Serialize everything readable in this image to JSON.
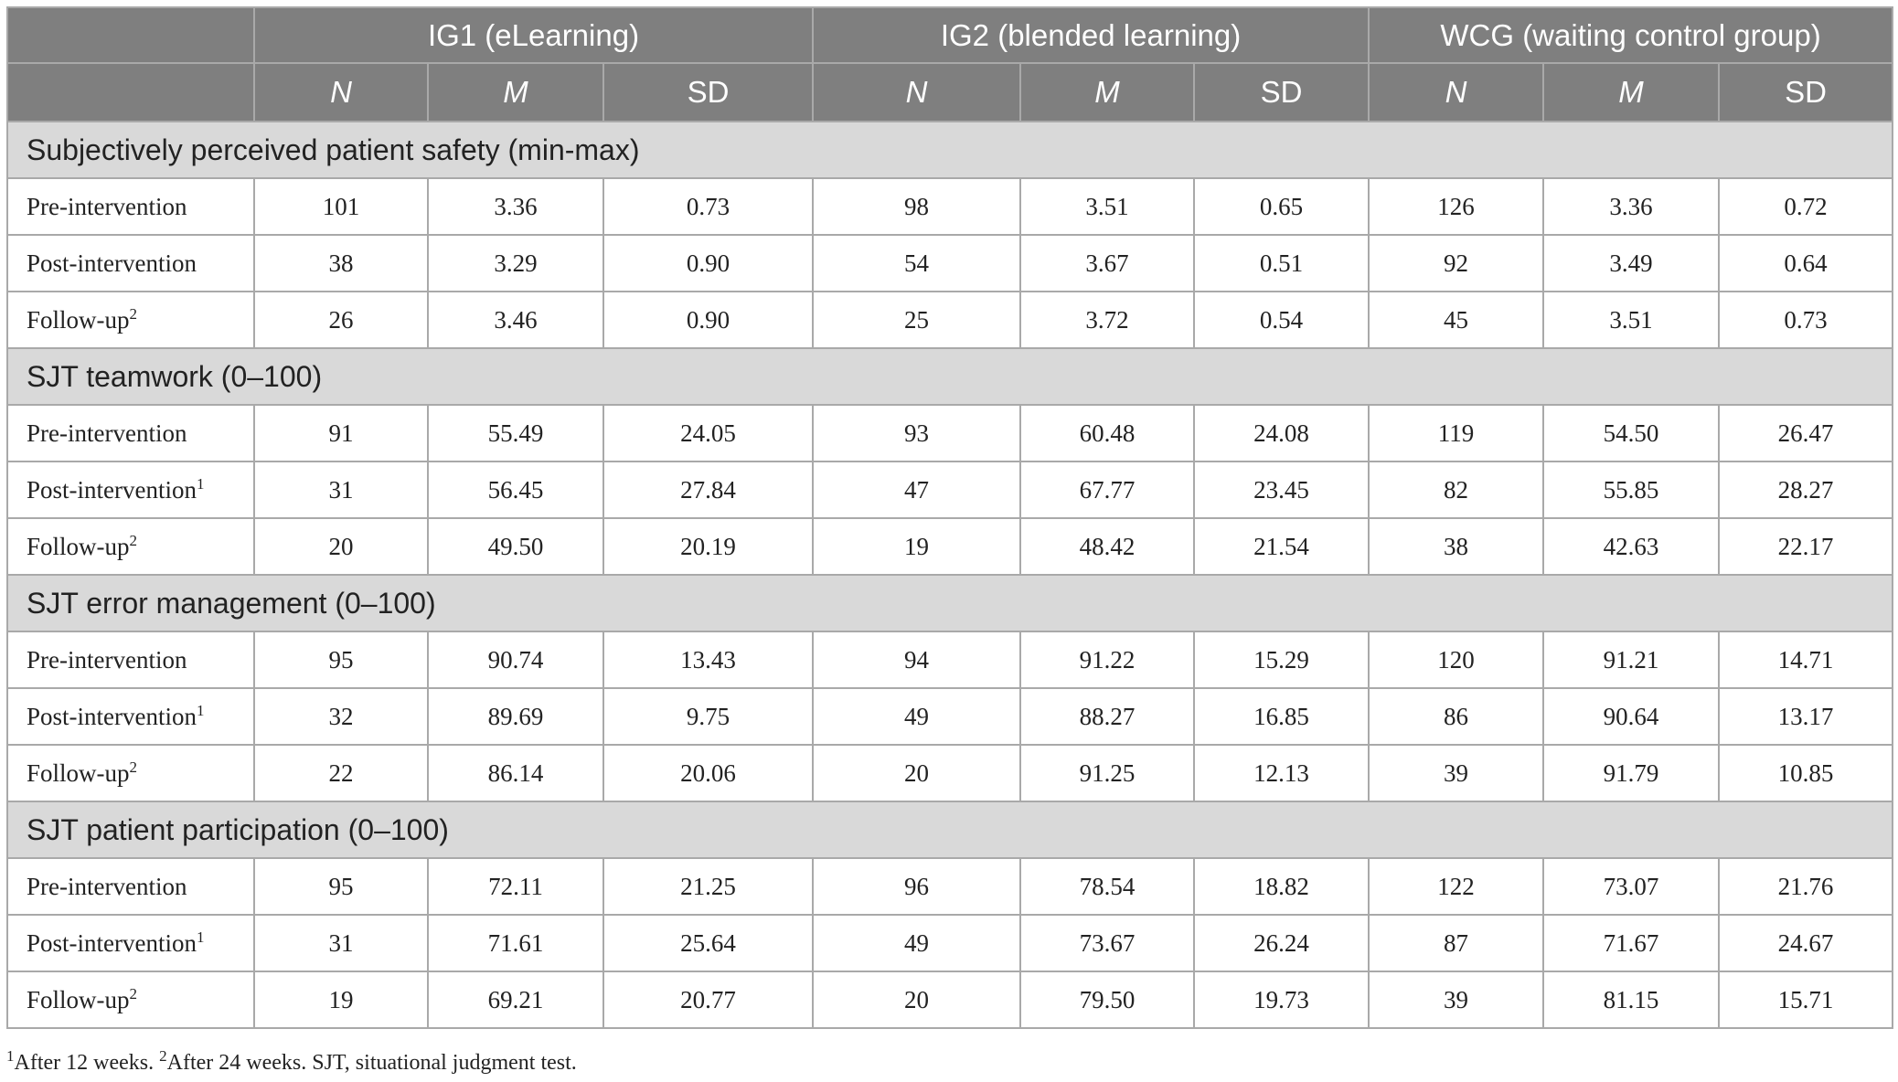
{
  "table": {
    "groups": [
      "IG1 (eLearning)",
      "IG2 (blended learning)",
      "WCG (waiting control group)"
    ],
    "subheaders": [
      "N",
      "M",
      "SD"
    ],
    "sections": [
      {
        "title": "Subjectively perceived patient safety (min-max)",
        "rows": [
          {
            "label": "Pre-intervention",
            "values": [
              "101",
              "3.36",
              "0.73",
              "98",
              "3.51",
              "0.65",
              "126",
              "3.36",
              "0.72"
            ]
          },
          {
            "label": "Post-intervention",
            "values": [
              "38",
              "3.29",
              "0.90",
              "54",
              "3.67",
              "0.51",
              "92",
              "3.49",
              "0.64"
            ]
          },
          {
            "label": "Follow-up",
            "note": "2",
            "values": [
              "26",
              "3.46",
              "0.90",
              "25",
              "3.72",
              "0.54",
              "45",
              "3.51",
              "0.73"
            ]
          }
        ]
      },
      {
        "title": "SJT teamwork (0–100)",
        "rows": [
          {
            "label": "Pre-intervention",
            "values": [
              "91",
              "55.49",
              "24.05",
              "93",
              "60.48",
              "24.08",
              "119",
              "54.50",
              "26.47"
            ]
          },
          {
            "label": "Post-intervention",
            "note": "1",
            "values": [
              "31",
              "56.45",
              "27.84",
              "47",
              "67.77",
              "23.45",
              "82",
              "55.85",
              "28.27"
            ]
          },
          {
            "label": "Follow-up",
            "note": "2",
            "values": [
              "20",
              "49.50",
              "20.19",
              "19",
              "48.42",
              "21.54",
              "38",
              "42.63",
              "22.17"
            ]
          }
        ]
      },
      {
        "title": "SJT error management (0–100)",
        "rows": [
          {
            "label": "Pre-intervention",
            "values": [
              "95",
              "90.74",
              "13.43",
              "94",
              "91.22",
              "15.29",
              "120",
              "91.21",
              "14.71"
            ]
          },
          {
            "label": "Post-intervention",
            "note": "1",
            "values": [
              "32",
              "89.69",
              "9.75",
              "49",
              "88.27",
              "16.85",
              "86",
              "90.64",
              "13.17"
            ]
          },
          {
            "label": "Follow-up",
            "note": "2",
            "values": [
              "22",
              "86.14",
              "20.06",
              "20",
              "91.25",
              "12.13",
              "39",
              "91.79",
              "10.85"
            ]
          }
        ]
      },
      {
        "title": "SJT patient participation (0–100)",
        "rows": [
          {
            "label": "Pre-intervention",
            "values": [
              "95",
              "72.11",
              "21.25",
              "96",
              "78.54",
              "18.82",
              "122",
              "73.07",
              "21.76"
            ]
          },
          {
            "label": "Post-intervention",
            "note": "1",
            "values": [
              "31",
              "71.61",
              "25.64",
              "49",
              "73.67",
              "26.24",
              "87",
              "71.67",
              "24.67"
            ]
          },
          {
            "label": "Follow-up",
            "note": "2",
            "values": [
              "19",
              "69.21",
              "20.77",
              "20",
              "79.50",
              "19.73",
              "39",
              "81.15",
              "15.71"
            ]
          }
        ]
      }
    ],
    "footnotes": [
      {
        "mark": "1",
        "text": "After 12 weeks."
      },
      {
        "mark": "2",
        "text": "After 24 weeks. SJT, situational judgment test."
      }
    ]
  }
}
